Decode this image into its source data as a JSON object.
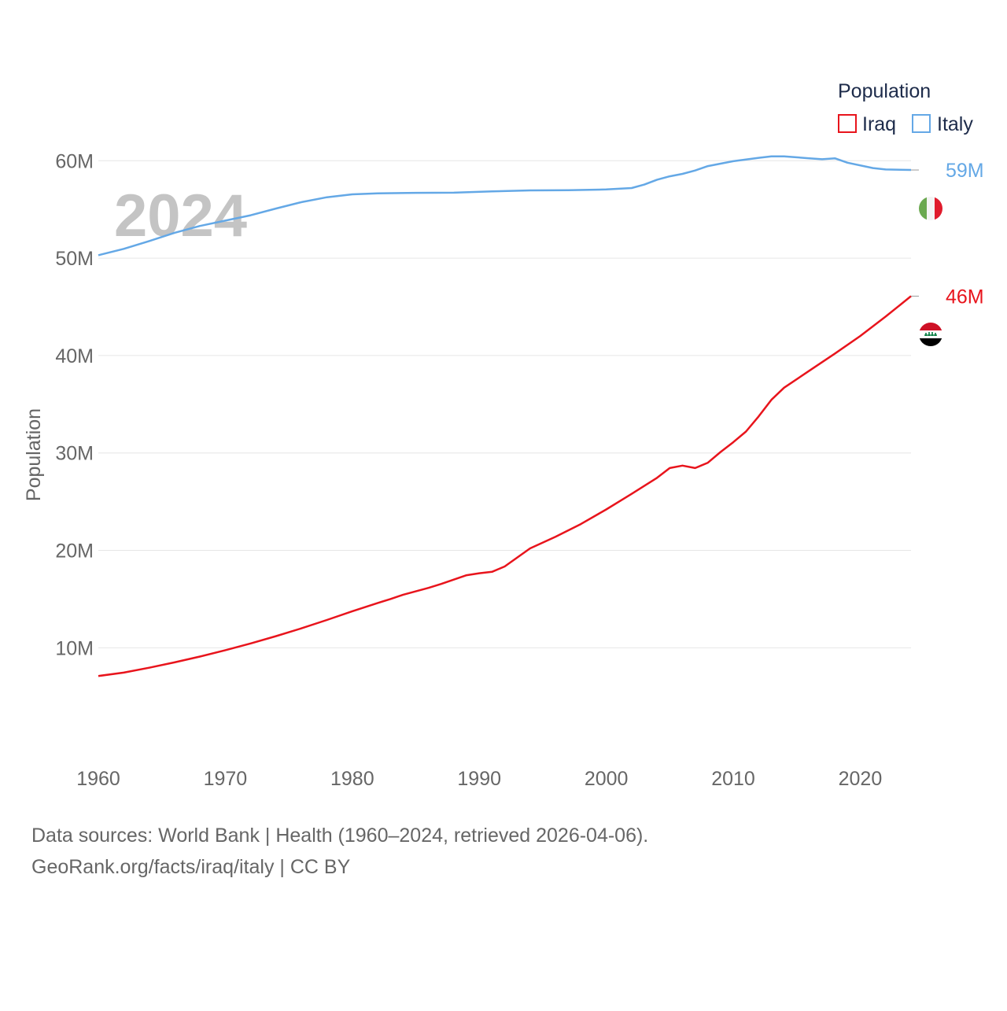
{
  "chart_data": {
    "type": "line",
    "big_year_label": "2024",
    "ylabel": "Population",
    "legend_title": "Population",
    "ylim": [
      3000000,
      66000000
    ],
    "xlim": [
      1960,
      2024
    ],
    "y_ticks": [
      {
        "value": 10000000,
        "label": "10M"
      },
      {
        "value": 20000000,
        "label": "20M"
      },
      {
        "value": 30000000,
        "label": "30M"
      },
      {
        "value": 40000000,
        "label": "40M"
      },
      {
        "value": 50000000,
        "label": "50M"
      },
      {
        "value": 60000000,
        "label": "60M"
      }
    ],
    "x_ticks": [
      {
        "value": 1960,
        "label": "1960"
      },
      {
        "value": 1970,
        "label": "1970"
      },
      {
        "value": 1980,
        "label": "1980"
      },
      {
        "value": 1990,
        "label": "1990"
      },
      {
        "value": 2000,
        "label": "2000"
      },
      {
        "value": 2010,
        "label": "2010"
      },
      {
        "value": 2020,
        "label": "2020"
      }
    ],
    "series": [
      {
        "name": "Iraq",
        "color": "#e8141c",
        "end_label": "46M",
        "flag_icon": "iraq-flag-icon",
        "points": [
          [
            1960,
            7100000
          ],
          [
            1962,
            7450000
          ],
          [
            1964,
            7950000
          ],
          [
            1966,
            8500000
          ],
          [
            1968,
            9100000
          ],
          [
            1970,
            9750000
          ],
          [
            1972,
            10450000
          ],
          [
            1974,
            11200000
          ],
          [
            1976,
            12000000
          ],
          [
            1978,
            12850000
          ],
          [
            1980,
            13750000
          ],
          [
            1982,
            14600000
          ],
          [
            1983,
            15000000
          ],
          [
            1984,
            15450000
          ],
          [
            1986,
            16150000
          ],
          [
            1987,
            16550000
          ],
          [
            1989,
            17450000
          ],
          [
            1990,
            17650000
          ],
          [
            1991,
            17800000
          ],
          [
            1992,
            18350000
          ],
          [
            1994,
            20200000
          ],
          [
            1996,
            21400000
          ],
          [
            1998,
            22700000
          ],
          [
            2000,
            24200000
          ],
          [
            2002,
            25800000
          ],
          [
            2004,
            27450000
          ],
          [
            2005,
            28450000
          ],
          [
            2006,
            28700000
          ],
          [
            2007,
            28450000
          ],
          [
            2008,
            29000000
          ],
          [
            2009,
            30100000
          ],
          [
            2010,
            31100000
          ],
          [
            2011,
            32200000
          ],
          [
            2012,
            33750000
          ],
          [
            2013,
            35450000
          ],
          [
            2014,
            36700000
          ],
          [
            2016,
            38450000
          ],
          [
            2018,
            40200000
          ],
          [
            2020,
            42000000
          ],
          [
            2022,
            44000000
          ],
          [
            2024,
            46100000
          ]
        ]
      },
      {
        "name": "Italy",
        "color": "#64a8e6",
        "end_label": "59M",
        "flag_icon": "italy-flag-icon",
        "points": [
          [
            1960,
            50300000
          ],
          [
            1962,
            50950000
          ],
          [
            1964,
            51750000
          ],
          [
            1966,
            52600000
          ],
          [
            1968,
            53300000
          ],
          [
            1970,
            53850000
          ],
          [
            1972,
            54400000
          ],
          [
            1974,
            55100000
          ],
          [
            1976,
            55750000
          ],
          [
            1978,
            56250000
          ],
          [
            1980,
            56550000
          ],
          [
            1982,
            56650000
          ],
          [
            1985,
            56700000
          ],
          [
            1988,
            56720000
          ],
          [
            1991,
            56850000
          ],
          [
            1994,
            56950000
          ],
          [
            1997,
            56980000
          ],
          [
            2000,
            57050000
          ],
          [
            2002,
            57200000
          ],
          [
            2003,
            57550000
          ],
          [
            2004,
            58050000
          ],
          [
            2005,
            58400000
          ],
          [
            2006,
            58650000
          ],
          [
            2007,
            59000000
          ],
          [
            2008,
            59450000
          ],
          [
            2010,
            59950000
          ],
          [
            2012,
            60300000
          ],
          [
            2013,
            60450000
          ],
          [
            2014,
            60450000
          ],
          [
            2016,
            60250000
          ],
          [
            2017,
            60150000
          ],
          [
            2018,
            60250000
          ],
          [
            2019,
            59800000
          ],
          [
            2021,
            59250000
          ],
          [
            2022,
            59100000
          ],
          [
            2024,
            59050000
          ]
        ]
      }
    ]
  },
  "footer": {
    "source_line": "Data sources: World Bank | Health (1960–2024, retrieved 2026-04-06).",
    "credit_line": "GeoRank.org/facts/iraq/italy | CC BY"
  }
}
